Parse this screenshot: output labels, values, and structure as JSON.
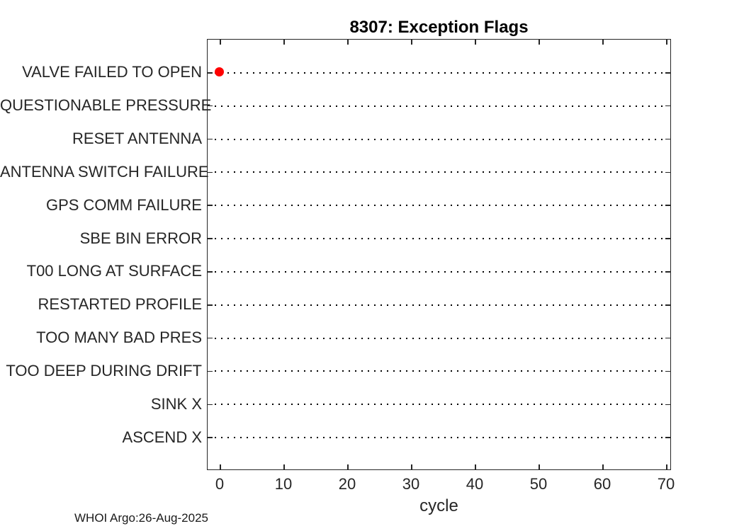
{
  "chart_data": {
    "type": "scatter",
    "title": "8307: Exception Flags",
    "xlabel": "cycle",
    "ylabel": "",
    "categories": [
      "VALVE FAILED TO OPEN",
      "QUESTIONABLE PRESSURE",
      "RESET ANTENNA",
      "ANTENNA SWITCH FAILURE",
      "GPS COMM FAILURE",
      "SBE BIN ERROR",
      "T00 LONG AT SURFACE",
      "RESTARTED PROFILE",
      "TOO MANY BAD PRES",
      "TOO DEEP DURING DRIFT",
      "SINK X",
      "ASCEND X"
    ],
    "x_ticks": [
      0,
      10,
      20,
      30,
      40,
      50,
      60,
      70
    ],
    "xlim": [
      -2,
      70.78
    ],
    "points": [
      {
        "x": 0,
        "category": "VALVE FAILED TO OPEN",
        "marker": "filled-circle",
        "color": "#ff0000"
      }
    ],
    "row_line_style": "dotted",
    "grid": "dotted horizontal category lines",
    "legend_position": "none",
    "annotation": "WHOI Argo:26-Aug-2025"
  },
  "colors": {
    "marker": "#ff0000",
    "axis": "#262626",
    "tick_text": "#262626",
    "title_text": "#000000",
    "row_line": "#000000",
    "background": "#ffffff"
  }
}
